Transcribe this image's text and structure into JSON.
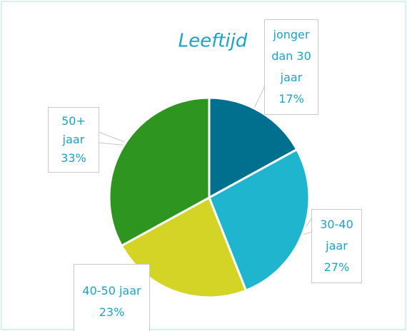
{
  "chart_data": {
    "type": "pie",
    "title": "Leeftijd",
    "categories": [
      "jonger dan 30 jaar",
      "30-40 jaar",
      "40-50 jaar",
      "50+ jaar"
    ],
    "values": [
      17,
      27,
      23,
      33
    ],
    "value_labels": [
      "17%",
      "27%",
      "23%",
      "33%"
    ],
    "colors": [
      "#00708e",
      "#1fb5cf",
      "#d4d426",
      "#2e9620"
    ]
  }
}
